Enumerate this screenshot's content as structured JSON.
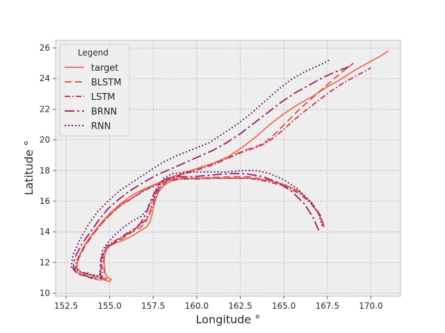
{
  "chart_data": {
    "type": "line",
    "title": "",
    "xlabel": "Longitude °",
    "ylabel": "Latitude °",
    "xlim": [
      151.9,
      171.7
    ],
    "ylim": [
      9.8,
      26.5
    ],
    "xticks": [
      152.5,
      155.0,
      157.5,
      160.0,
      162.5,
      165.0,
      167.5,
      170.0
    ],
    "yticks": [
      10,
      12,
      14,
      16,
      18,
      20,
      22,
      24,
      26
    ],
    "xtick_labels": [
      "152.5",
      "155.0",
      "157.5",
      "160.0",
      "162.5",
      "165.0",
      "167.5",
      "170.0"
    ],
    "ytick_labels": [
      "10",
      "12",
      "14",
      "16",
      "18",
      "20",
      "22",
      "24",
      "26"
    ],
    "grid": true,
    "legend": {
      "title": "Legend",
      "placement": "upper-left"
    },
    "series": [
      {
        "name": "target",
        "color": "#e8795f",
        "dash": "solid",
        "x": [
          167.2,
          167.0,
          166.5,
          165.8,
          165.0,
          164.0,
          163.0,
          162.0,
          161.0,
          160.0,
          159.0,
          158.5,
          158.1,
          157.8,
          157.6,
          157.5,
          157.4,
          157.3,
          157.1,
          156.8,
          156.4,
          155.9,
          155.4,
          155.0,
          154.8,
          154.7,
          154.7,
          154.75,
          154.9,
          155.1,
          155.0,
          154.6,
          154.2,
          153.8,
          153.4,
          153.1,
          153.2,
          153.6,
          154.1,
          154.6,
          155.1,
          155.7,
          156.3,
          157.0,
          157.8,
          158.6,
          159.4,
          160.2,
          161.0,
          161.8,
          162.6,
          163.4,
          164.2,
          165.0,
          165.8,
          166.6,
          167.4,
          168.2,
          169.0,
          169.8,
          170.6,
          171.0
        ],
        "y": [
          14.6,
          15.2,
          16.0,
          16.7,
          17.1,
          17.4,
          17.5,
          17.5,
          17.5,
          17.5,
          17.45,
          17.3,
          17.0,
          16.6,
          16.0,
          15.5,
          15.0,
          14.6,
          14.3,
          14.1,
          13.8,
          13.5,
          13.3,
          13.1,
          12.8,
          12.3,
          11.8,
          11.3,
          11.0,
          10.9,
          10.75,
          10.9,
          11.1,
          11.2,
          11.3,
          11.7,
          12.3,
          13.2,
          14.0,
          14.7,
          15.3,
          15.9,
          16.4,
          16.8,
          17.2,
          17.6,
          17.9,
          18.2,
          18.5,
          18.9,
          19.5,
          20.2,
          21.0,
          21.7,
          22.3,
          22.8,
          23.4,
          23.9,
          24.5,
          25.0,
          25.5,
          25.8
        ]
      },
      {
        "name": "BLSTM",
        "color": "#e05a4d",
        "dash": "10,5",
        "x": [
          167.3,
          167.1,
          166.6,
          165.9,
          165.0,
          164.0,
          163.0,
          162.0,
          161.0,
          160.0,
          159.0,
          158.4,
          158.0,
          157.7,
          157.5,
          157.3,
          157.1,
          156.8,
          156.3,
          155.8,
          155.3,
          154.9,
          154.7,
          154.65,
          154.7,
          154.8,
          154.6,
          154.2,
          153.8,
          153.4,
          153.1,
          153.2,
          153.6,
          154.1,
          154.6,
          155.1,
          155.7,
          156.4,
          157.1,
          157.9,
          158.7,
          159.5,
          160.3,
          161.1,
          161.9,
          162.7,
          163.5,
          164.0,
          164.5,
          165.2,
          165.9,
          166.6,
          167.4,
          168.2,
          169.0
        ],
        "y": [
          14.4,
          15.1,
          15.9,
          16.6,
          17.1,
          17.4,
          17.6,
          17.6,
          17.55,
          17.5,
          17.5,
          17.4,
          17.1,
          16.6,
          16.0,
          15.3,
          14.7,
          14.3,
          14.0,
          13.6,
          13.3,
          13.0,
          12.6,
          12.0,
          11.4,
          10.9,
          11.0,
          11.1,
          11.3,
          11.35,
          11.6,
          12.2,
          13.1,
          13.9,
          14.6,
          15.2,
          15.8,
          16.3,
          16.8,
          17.2,
          17.6,
          17.9,
          18.2,
          18.5,
          18.9,
          19.3,
          19.6,
          19.9,
          20.4,
          21.2,
          22.0,
          22.7,
          23.5,
          24.3,
          25.0
        ]
      },
      {
        "name": "LSTM",
        "color": "#c43f66",
        "dash": "8,3,2,3",
        "x": [
          167.3,
          167.1,
          166.6,
          165.9,
          165.0,
          164.0,
          163.0,
          162.0,
          161.0,
          160.0,
          159.0,
          158.3,
          157.9,
          157.7,
          157.5,
          157.3,
          157.0,
          156.6,
          156.1,
          155.6,
          155.1,
          154.8,
          154.6,
          154.55,
          154.6,
          154.5,
          154.1,
          153.7,
          153.3,
          153.0,
          153.1,
          153.5,
          154.0,
          154.5,
          155.0,
          155.6,
          156.3,
          157.0,
          157.8,
          158.6,
          159.4,
          160.2,
          161.0,
          161.8,
          162.6,
          163.4,
          164.0,
          164.6,
          165.3,
          166.0,
          166.8,
          167.6,
          168.4,
          169.2,
          170.0
        ],
        "y": [
          14.3,
          15.0,
          15.8,
          16.5,
          17.0,
          17.3,
          17.5,
          17.5,
          17.5,
          17.45,
          17.45,
          17.3,
          16.9,
          16.4,
          15.8,
          15.2,
          14.7,
          14.3,
          14.0,
          13.6,
          13.3,
          13.0,
          12.5,
          11.8,
          11.2,
          10.8,
          11.0,
          11.1,
          11.2,
          11.5,
          12.1,
          13.0,
          13.8,
          14.5,
          15.1,
          15.7,
          16.2,
          16.7,
          17.1,
          17.5,
          17.8,
          18.1,
          18.4,
          18.8,
          19.2,
          19.5,
          19.8,
          20.3,
          21.0,
          21.7,
          22.4,
          23.1,
          23.7,
          24.2,
          24.7
        ]
      },
      {
        "name": "BRNN",
        "color": "#9c2c6b",
        "dash": "14,4,3,4",
        "x": [
          167.0,
          166.7,
          166.2,
          165.5,
          164.7,
          163.8,
          162.8,
          161.8,
          160.8,
          159.8,
          158.9,
          158.3,
          157.9,
          157.6,
          157.3,
          157.1,
          156.8,
          156.4,
          155.9,
          155.4,
          155.0,
          154.7,
          154.5,
          154.45,
          154.5,
          154.3,
          153.9,
          153.5,
          153.1,
          152.9,
          153.0,
          153.4,
          153.9,
          154.4,
          154.9,
          155.5,
          156.2,
          156.9,
          157.7,
          158.5,
          159.3,
          160.1,
          160.9,
          161.7,
          162.5,
          163.3,
          164.1,
          164.9,
          165.7,
          166.5,
          167.3,
          168.1,
          168.8
        ],
        "y": [
          14.1,
          14.9,
          15.8,
          16.6,
          17.2,
          17.6,
          17.8,
          17.8,
          17.7,
          17.6,
          17.6,
          17.5,
          17.2,
          16.6,
          15.9,
          15.2,
          14.6,
          14.1,
          13.8,
          13.4,
          13.1,
          12.7,
          12.2,
          11.6,
          11.0,
          10.9,
          11.0,
          11.2,
          11.3,
          11.6,
          12.3,
          13.2,
          14.0,
          14.8,
          15.5,
          16.1,
          16.7,
          17.2,
          17.7,
          18.1,
          18.5,
          18.9,
          19.3,
          19.8,
          20.4,
          21.1,
          21.8,
          22.5,
          23.1,
          23.6,
          24.1,
          24.5,
          24.8
        ]
      },
      {
        "name": "RNN",
        "color": "#6b1f6e",
        "dash": "2,3",
        "x": [
          167.2,
          167.0,
          166.5,
          165.8,
          165.0,
          164.2,
          163.4,
          162.6,
          161.8,
          161.0,
          160.2,
          159.4,
          158.6,
          158.1,
          157.8,
          157.5,
          157.2,
          156.8,
          156.3,
          155.8,
          155.3,
          154.9,
          154.6,
          154.5,
          154.5,
          154.4,
          154.0,
          153.6,
          153.2,
          152.8,
          152.9,
          153.3,
          153.8,
          154.3,
          154.9,
          155.6,
          156.4,
          157.2,
          158.0,
          158.9,
          159.8,
          160.7,
          161.5,
          162.3,
          163.1,
          163.9,
          164.7,
          165.5,
          166.3,
          167.1,
          167.6
        ],
        "y": [
          14.4,
          15.2,
          16.0,
          16.8,
          17.4,
          17.8,
          18.0,
          18.0,
          17.9,
          17.9,
          17.9,
          17.9,
          17.8,
          17.5,
          16.9,
          16.2,
          15.5,
          15.0,
          14.7,
          14.3,
          13.8,
          13.3,
          12.8,
          12.2,
          11.6,
          11.1,
          11.2,
          11.3,
          11.4,
          11.7,
          12.5,
          13.5,
          14.5,
          15.3,
          16.0,
          16.7,
          17.3,
          17.9,
          18.5,
          19.0,
          19.4,
          19.8,
          20.4,
          21.0,
          21.7,
          22.5,
          23.3,
          24.0,
          24.5,
          24.9,
          25.2
        ]
      }
    ]
  }
}
